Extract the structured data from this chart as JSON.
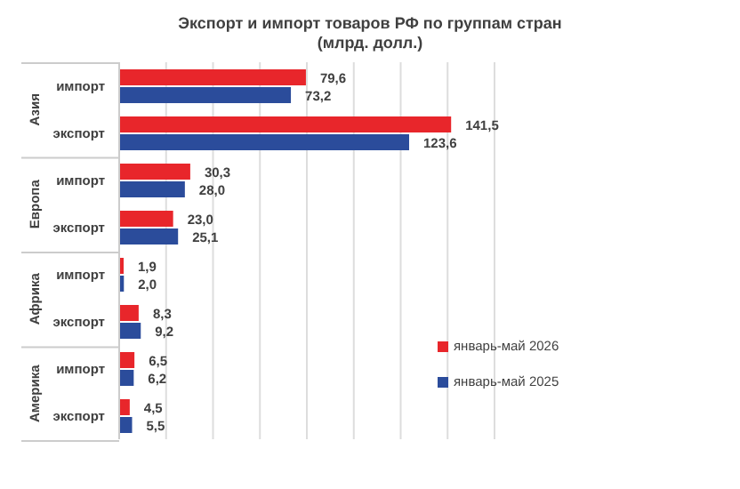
{
  "chart_data": {
    "type": "bar",
    "orientation": "horizontal",
    "title": "Экспорт и импорт товаров РФ по группам стран",
    "subtitle": "(млрд. долл.)",
    "categories": [
      "импорт",
      "экспорт",
      "импорт",
      "экспорт",
      "импорт",
      "экспорт",
      "импорт",
      "экспорт"
    ],
    "series": [
      {
        "name": "январь-май 2026",
        "color": "#e8262b",
        "values": [
          79.6,
          141.5,
          30.3,
          23.0,
          1.9,
          8.3,
          6.5,
          4.5
        ],
        "value_labels": [
          "79,6",
          "141,5",
          "30,3",
          "23,0",
          "1,9",
          "8,3",
          "6,5",
          "4,5"
        ]
      },
      {
        "name": "январь-май 2025",
        "color": "#2b4c9b",
        "values": [
          73.2,
          123.6,
          28.0,
          25.1,
          2.0,
          9.2,
          6.2,
          5.5
        ],
        "value_labels": [
          "73,2",
          "123,6",
          "28,0",
          "25,1",
          "2,0",
          "9,2",
          "6,2",
          "5,5"
        ]
      }
    ],
    "annotations": [
      "Азия",
      "Европа",
      "Африка",
      "Америка"
    ],
    "xlim": [
      0,
      160
    ],
    "xticks": [
      {
        "value": 0,
        "label": null
      },
      {
        "value": 20,
        "label": null
      },
      {
        "value": 40,
        "label": null
      },
      {
        "value": 60,
        "label": null
      },
      {
        "value": 80,
        "label": null
      },
      {
        "value": 100,
        "label": null
      },
      {
        "value": 120,
        "label": null
      },
      {
        "value": 140,
        "label": null
      },
      {
        "value": 160,
        "label": null
      }
    ],
    "tick_labels": "y",
    "grid": "x",
    "legend": "right"
  }
}
